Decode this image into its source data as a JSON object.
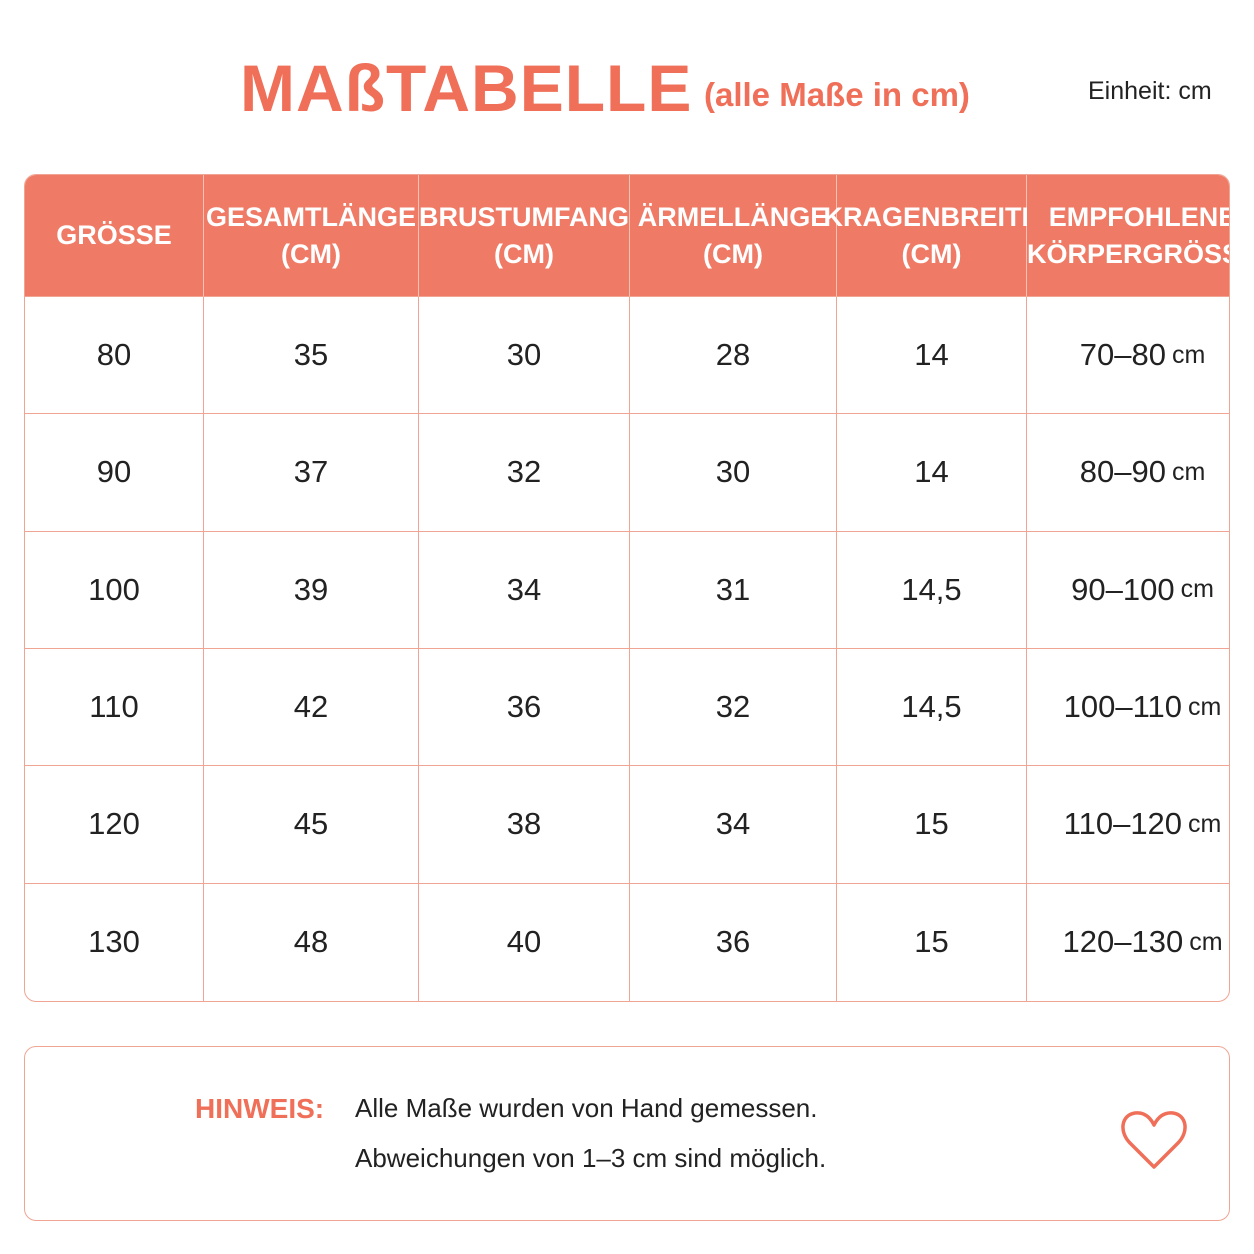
{
  "header": {
    "title": "MAßTABELLE",
    "subtitle": "(alle Maße in cm)",
    "unit": "Einheit: cm"
  },
  "table": {
    "columns": [
      [
        "GRÖSSE"
      ],
      [
        "GESAMTLÄNGE",
        "(CM)"
      ],
      [
        "BRUSTUMFANG",
        "(CM)"
      ],
      [
        "ÄRMELLÄNGE",
        "(CM)"
      ],
      [
        "KRAGENBREITE",
        "(CM)"
      ],
      [
        "EMPFOHLENE",
        "KÖRPERGRÖSSE"
      ]
    ],
    "rows": [
      [
        "80",
        "35",
        "30",
        "28",
        "14",
        {
          "range": "70–80",
          "unit": "cm"
        }
      ],
      [
        "90",
        "37",
        "32",
        "30",
        "14",
        {
          "range": "80–90",
          "unit": "cm"
        }
      ],
      [
        "100",
        "39",
        "34",
        "31",
        "14,5",
        {
          "range": "90–100",
          "unit": "cm"
        }
      ],
      [
        "110",
        "42",
        "36",
        "32",
        "14,5",
        {
          "range": "100–110",
          "unit": "cm"
        }
      ],
      [
        "120",
        "45",
        "38",
        "34",
        "15",
        {
          "range": "110–120",
          "unit": "cm"
        }
      ],
      [
        "130",
        "48",
        "40",
        "36",
        "15",
        {
          "range": "120–130",
          "unit": "cm"
        }
      ]
    ]
  },
  "note": {
    "label": "HINWEIS:",
    "lines": [
      "Alle Maße wurden von Hand gemessen.",
      "Abweichungen von 1–3 cm sind möglich."
    ]
  }
}
